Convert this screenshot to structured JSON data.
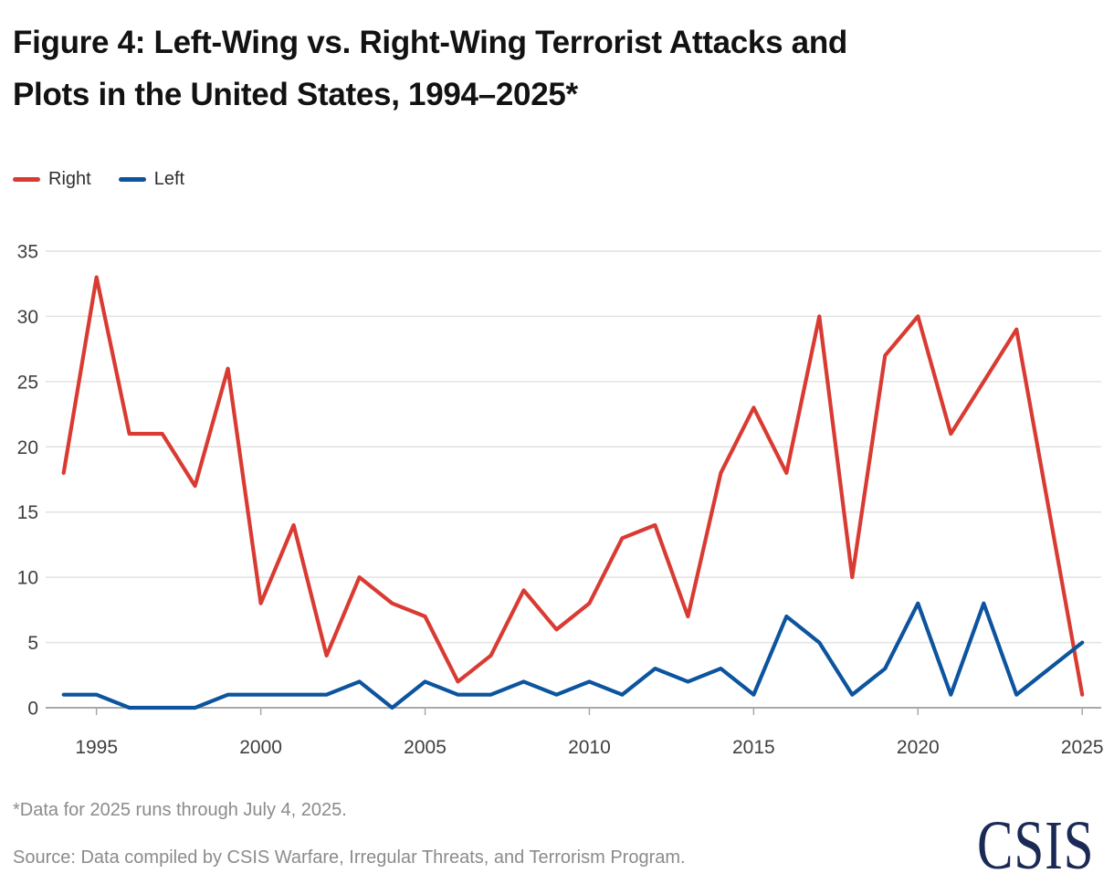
{
  "header": {
    "title_lines": [
      "Figure 4: Left-Wing vs. Right-Wing Terrorist Attacks and",
      "Plots in the United States, 1994–2025*"
    ]
  },
  "legend": {
    "items": [
      {
        "label": "Right",
        "color": "#d93b33"
      },
      {
        "label": "Left",
        "color": "#0d549e"
      }
    ]
  },
  "chart_data": {
    "type": "line",
    "title": "Figure 4: Left-Wing vs. Right-Wing Terrorist Attacks and Plots in the United States, 1994–2025*",
    "xlabel": "",
    "ylabel": "",
    "x": [
      1994,
      1995,
      1996,
      1997,
      1998,
      1999,
      2000,
      2001,
      2002,
      2003,
      2004,
      2005,
      2006,
      2007,
      2008,
      2009,
      2010,
      2011,
      2012,
      2013,
      2014,
      2015,
      2016,
      2017,
      2018,
      2019,
      2020,
      2021,
      2022,
      2023,
      2024,
      2025
    ],
    "series": [
      {
        "name": "Right",
        "color": "#d93b33",
        "values": [
          18,
          33,
          21,
          21,
          17,
          26,
          8,
          14,
          4,
          10,
          8,
          7,
          2,
          4,
          9,
          6,
          8,
          13,
          14,
          7,
          18,
          23,
          18,
          30,
          10,
          27,
          30,
          21,
          25,
          29,
          15,
          1
        ]
      },
      {
        "name": "Left",
        "color": "#0d549e",
        "values": [
          1,
          1,
          0,
          0,
          0,
          1,
          1,
          1,
          1,
          2,
          0,
          2,
          1,
          1,
          2,
          1,
          2,
          1,
          3,
          2,
          3,
          1,
          7,
          5,
          1,
          3,
          8,
          1,
          8,
          1,
          3,
          5
        ]
      }
    ],
    "ylim": [
      0,
      35
    ],
    "yticks": [
      0,
      5,
      10,
      15,
      20,
      25,
      30,
      35
    ],
    "xticks": [
      1995,
      2000,
      2005,
      2010,
      2015,
      2020,
      2025
    ],
    "grid": true,
    "legend_position": "top-left"
  },
  "footer": {
    "footnote": "*Data for 2025 runs through July 4, 2025.",
    "source": "Source: Data compiled by CSIS Warfare, Irregular Threats, and Terrorism Program.",
    "logo_text": "CSIS"
  },
  "colors": {
    "right": "#d93b33",
    "left": "#0d549e",
    "gridline": "#e2e2e2",
    "axis_line": "#a9a9a9",
    "tick_label": "#3f3f3f",
    "muted_text": "#8b8b8b",
    "logo_navy": "#1b2a55"
  }
}
